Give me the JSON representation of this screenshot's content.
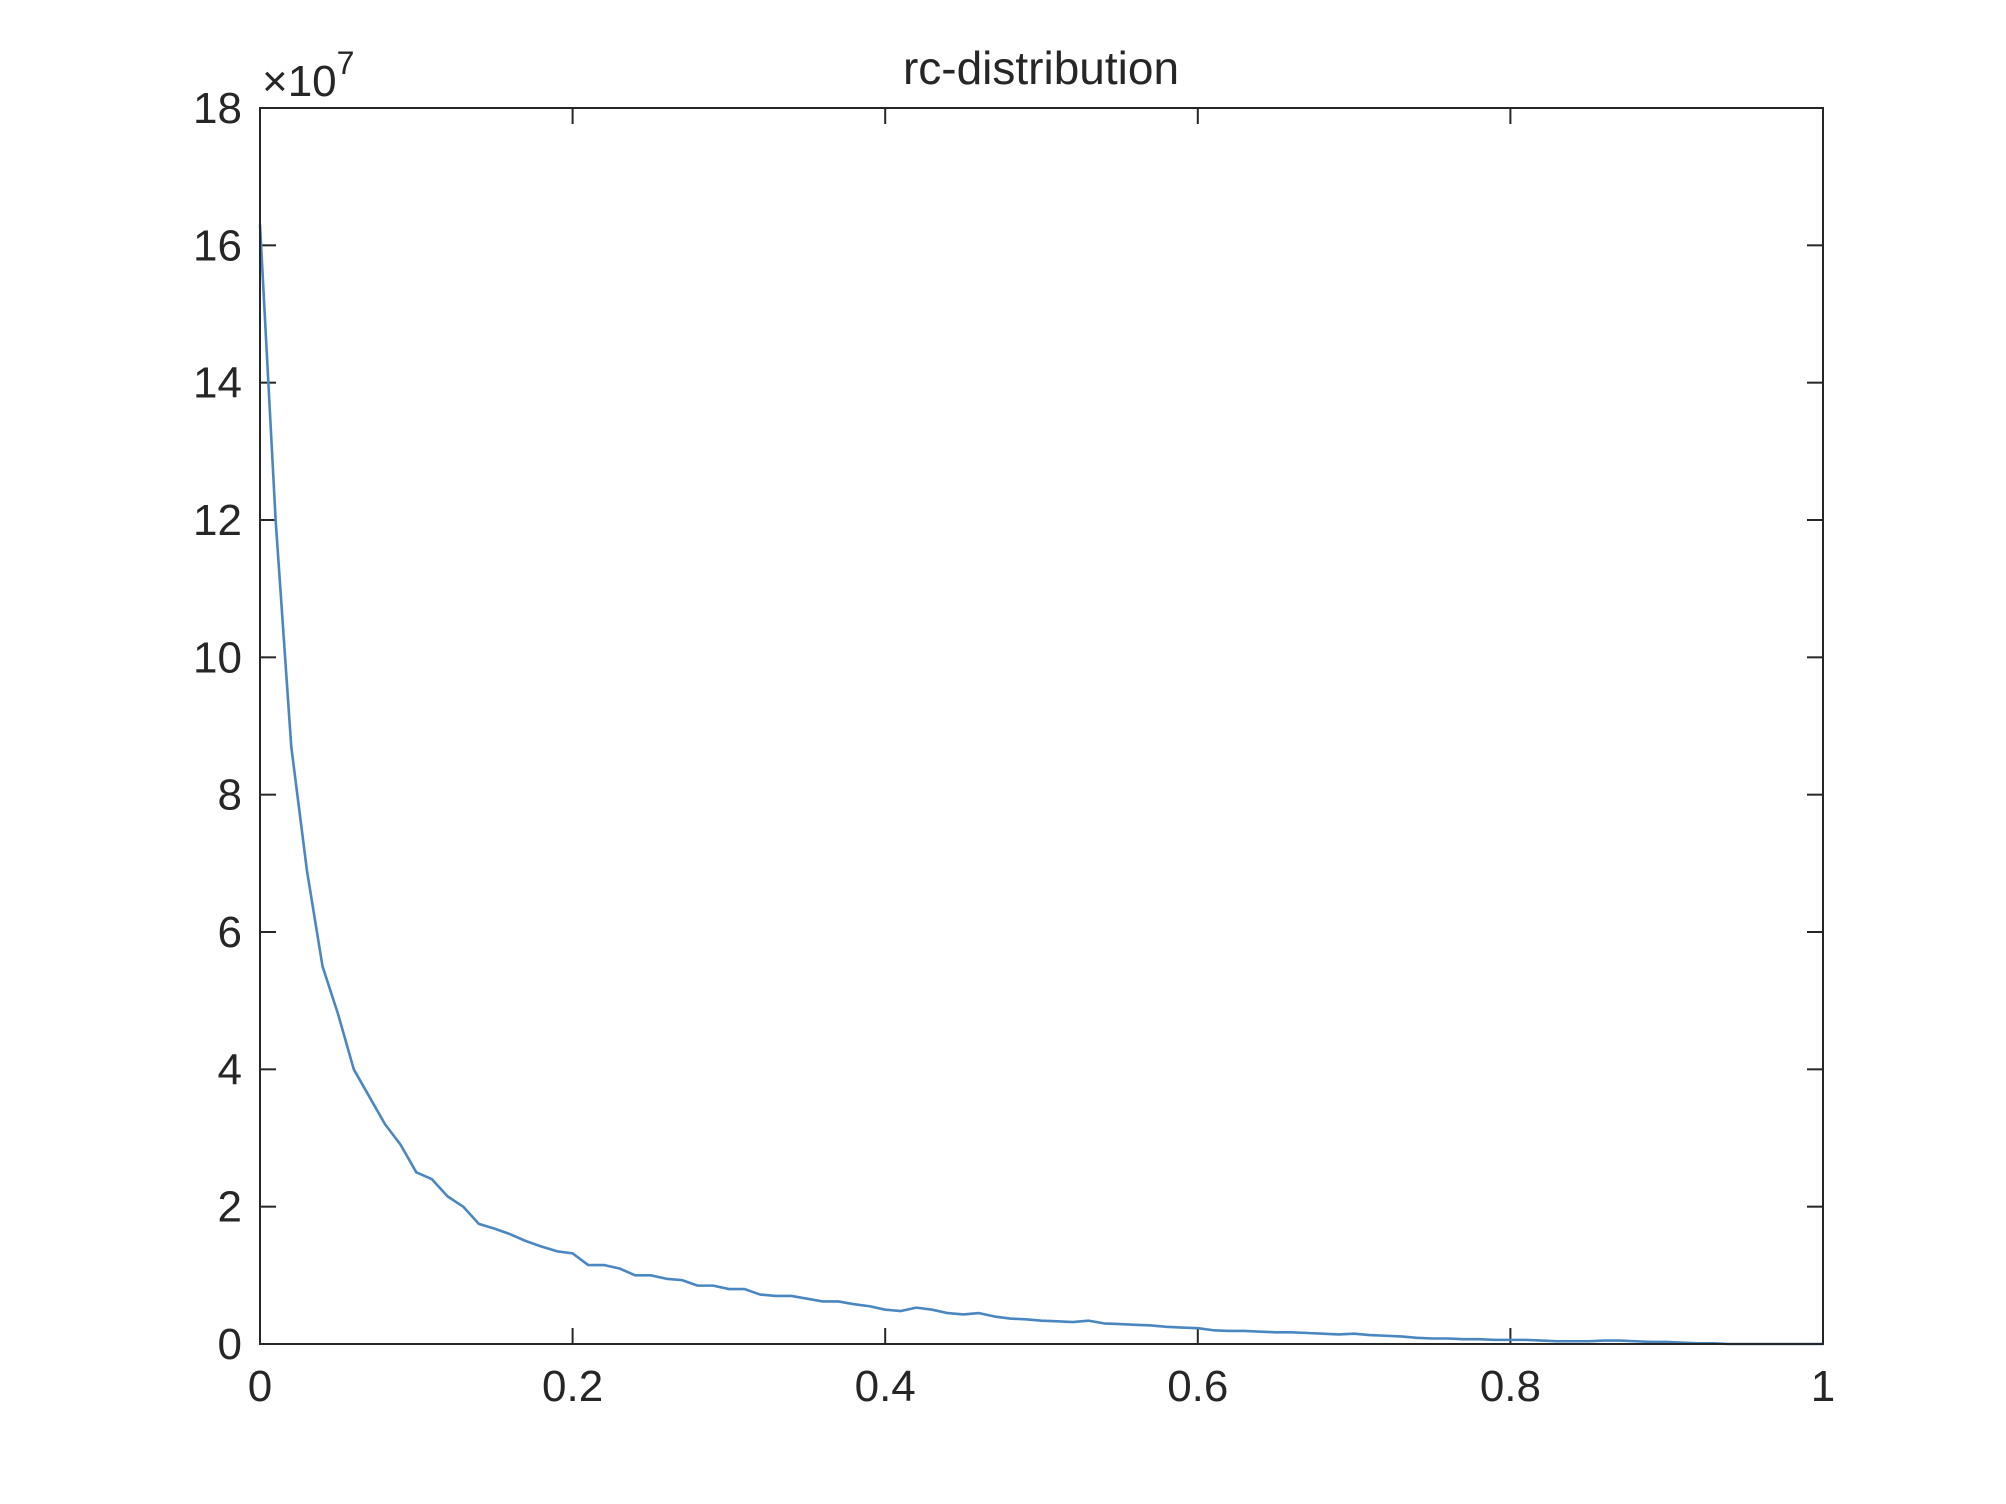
{
  "chart_data": {
    "type": "line",
    "title": "rc-distribution",
    "y_scale_base": "×10",
    "y_scale_exponent": "7",
    "color": "#4a86c0",
    "x": [
      0,
      0.01,
      0.02,
      0.03,
      0.04,
      0.05,
      0.06,
      0.07,
      0.08,
      0.09,
      0.1,
      0.11,
      0.12,
      0.13,
      0.14,
      0.15,
      0.16,
      0.17,
      0.18,
      0.19,
      0.2,
      0.21,
      0.22,
      0.23,
      0.24,
      0.25,
      0.26,
      0.27,
      0.28,
      0.29,
      0.3,
      0.31,
      0.32,
      0.33,
      0.34,
      0.35,
      0.36,
      0.37,
      0.38,
      0.39,
      0.4,
      0.41,
      0.42,
      0.43,
      0.44,
      0.45,
      0.46,
      0.47,
      0.48,
      0.49,
      0.5,
      0.51,
      0.52,
      0.53,
      0.54,
      0.55,
      0.56,
      0.57,
      0.58,
      0.59,
      0.6,
      0.61,
      0.62,
      0.63,
      0.64,
      0.65,
      0.66,
      0.67,
      0.68,
      0.69,
      0.7,
      0.71,
      0.72,
      0.73,
      0.74,
      0.75,
      0.76,
      0.77,
      0.78,
      0.79,
      0.8,
      0.81,
      0.82,
      0.83,
      0.84,
      0.85,
      0.86,
      0.87,
      0.88,
      0.89,
      0.9,
      0.91,
      0.92,
      0.93,
      0.94,
      0.95,
      0.96,
      0.97,
      0.98,
      0.99,
      1
    ],
    "values": [
      16.3,
      12.0,
      8.7,
      6.9,
      5.5,
      4.8,
      4.0,
      3.6,
      3.2,
      2.9,
      2.5,
      2.4,
      2.15,
      2.0,
      1.75,
      1.68,
      1.6,
      1.5,
      1.42,
      1.35,
      1.32,
      1.15,
      1.15,
      1.1,
      1.0,
      1.0,
      0.95,
      0.93,
      0.85,
      0.85,
      0.8,
      0.8,
      0.72,
      0.7,
      0.7,
      0.66,
      0.62,
      0.62,
      0.58,
      0.55,
      0.5,
      0.48,
      0.53,
      0.5,
      0.45,
      0.43,
      0.45,
      0.4,
      0.37,
      0.36,
      0.34,
      0.33,
      0.32,
      0.34,
      0.3,
      0.29,
      0.28,
      0.27,
      0.25,
      0.24,
      0.23,
      0.2,
      0.19,
      0.19,
      0.18,
      0.17,
      0.17,
      0.16,
      0.15,
      0.14,
      0.15,
      0.13,
      0.12,
      0.11,
      0.09,
      0.08,
      0.08,
      0.07,
      0.07,
      0.06,
      0.06,
      0.06,
      0.05,
      0.04,
      0.04,
      0.04,
      0.05,
      0.05,
      0.04,
      0.03,
      0.03,
      0.02,
      0.01,
      0.01,
      0,
      0,
      0,
      0,
      0,
      0,
      0
    ],
    "xlim": [
      0,
      1
    ],
    "ylim": [
      0,
      18
    ],
    "xticks": [
      0,
      0.2,
      0.4,
      0.6,
      0.8,
      1
    ],
    "yticks": [
      0,
      2,
      4,
      6,
      8,
      10,
      12,
      14,
      16,
      18
    ],
    "grid": false
  }
}
